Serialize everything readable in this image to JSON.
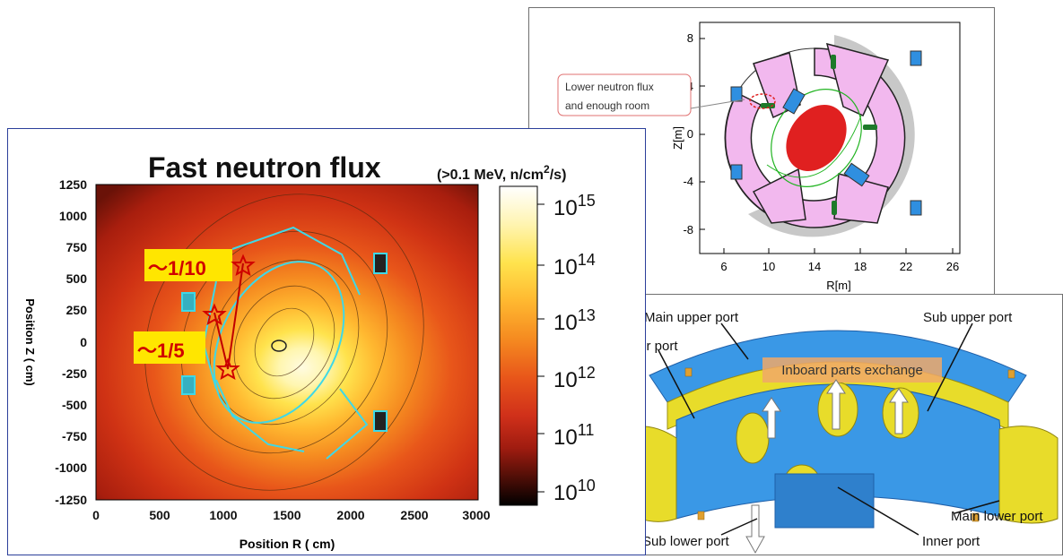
{
  "flux_map": {
    "title": "Fast neutron flux",
    "units": "(>0.1 MeV, n/cm²/s)",
    "units_pre": "(>0.1 MeV, n/cm",
    "units_sup": "2",
    "units_post": "/s)",
    "xlabel": "Position R ( cm)",
    "ylabel": "Position Z ( cm)",
    "x_ticks": [
      "0",
      "500",
      "1000",
      "1500",
      "2000",
      "2500",
      "3000"
    ],
    "y_ticks": [
      "1250",
      "1000",
      "750",
      "500",
      "250",
      "0",
      "-250",
      "-500",
      "-750",
      "-1000",
      "-1250"
    ],
    "colorbar": {
      "tick_base": "10",
      "exponents": [
        "15",
        "14",
        "13",
        "12",
        "11",
        "10"
      ]
    },
    "annotations": [
      {
        "label": "～1/10"
      },
      {
        "label": "～1/5"
      }
    ]
  },
  "rz_plot": {
    "xlabel": "R[m]",
    "ylabel": "Z[m]",
    "x_ticks": [
      "6",
      "10",
      "14",
      "18",
      "22",
      "26"
    ],
    "y_ticks": [
      "8",
      "4",
      "0",
      "-4",
      "-8"
    ],
    "callout_line1": "Lower neutron flux",
    "callout_line2": "and enough room"
  },
  "port_diagram": {
    "labels": {
      "main_upper": "Main upper port",
      "sub_upper": "Sub upper port",
      "outer": "Outer port",
      "exchange": "Inboard parts exchange",
      "main_lower": "Main lower port",
      "sub_lower": "Sub lower port",
      "inner": "Inner port"
    }
  },
  "colors": {
    "flux_border": "#2b3f9a",
    "cyan_structure": "#3fd8e6",
    "annotation_bg": "#ffe600",
    "annotation_text": "#d00000",
    "vessel_pink": "#f2b8ee",
    "coil_blue": "#2f8fe0",
    "plasma_red": "#e02020",
    "field_green": "#22b422",
    "blanket_blue": "#3a98e6",
    "blanket_yellow": "#e8dc2a"
  }
}
